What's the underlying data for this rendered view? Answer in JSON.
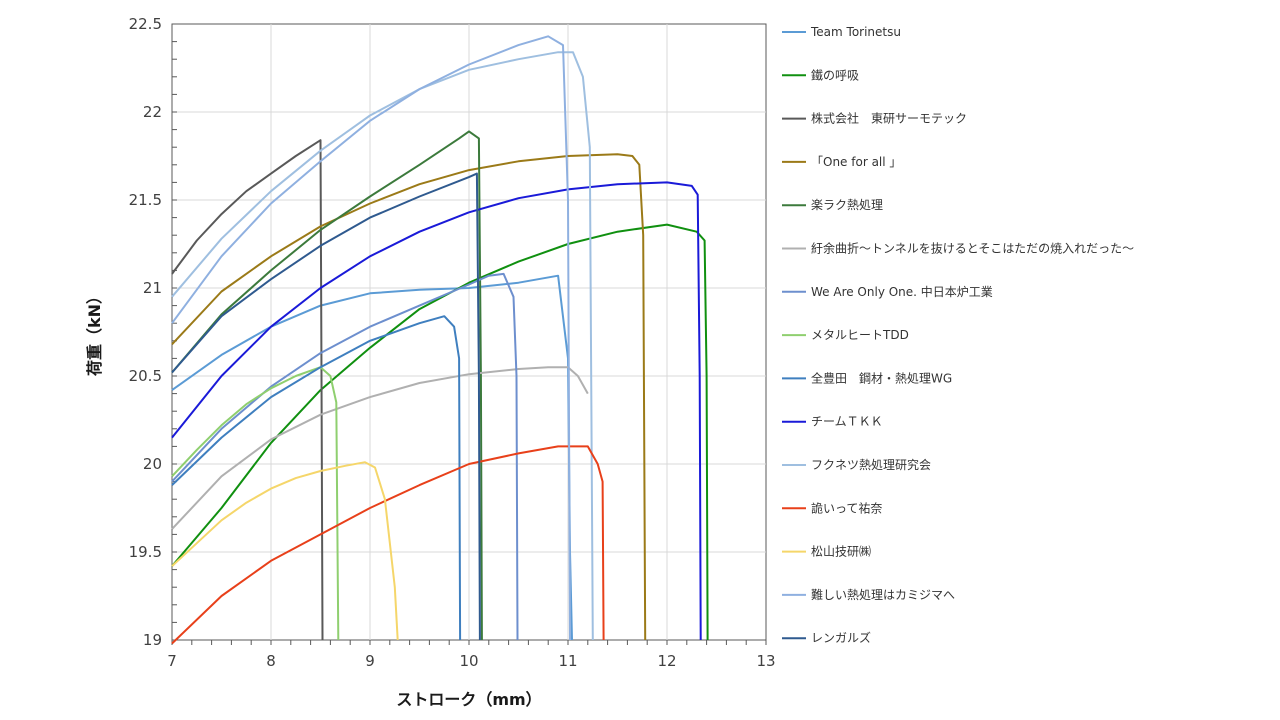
{
  "chart_data": {
    "type": "line",
    "xlabel": "ストローク（mm）",
    "ylabel": "荷重（kN）",
    "xlim": [
      7,
      13
    ],
    "ylim": [
      19,
      22.5
    ],
    "xticks": [
      7,
      8,
      9,
      10,
      11,
      12,
      13
    ],
    "yticks": [
      19,
      19.5,
      20,
      20.5,
      21,
      21.5,
      22,
      22.5
    ],
    "grid": true,
    "legend_position": "right",
    "series": [
      {
        "name": "Team Torinetsu",
        "color": "#5b9bd5",
        "x": [
          7.0,
          7.5,
          8.0,
          8.5,
          9.0,
          9.5,
          10.0,
          10.5,
          10.9,
          11.0,
          11.02,
          11.04
        ],
        "y": [
          20.42,
          20.62,
          20.78,
          20.9,
          20.97,
          20.99,
          21.0,
          21.03,
          21.07,
          20.6,
          19.5,
          19.0
        ]
      },
      {
        "name": "鐵の呼吸",
        "color": "#109010",
        "x": [
          7.0,
          7.5,
          8.0,
          8.5,
          9.0,
          9.5,
          10.0,
          10.5,
          11.0,
          11.5,
          12.0,
          12.3,
          12.38,
          12.4,
          12.41
        ],
        "y": [
          19.42,
          19.75,
          20.12,
          20.42,
          20.66,
          20.88,
          21.03,
          21.15,
          21.25,
          21.32,
          21.36,
          21.32,
          21.27,
          20.5,
          19.0
        ]
      },
      {
        "name": "株式会社　東研サーモテック",
        "color": "#595959",
        "x": [
          7.0,
          7.25,
          7.5,
          7.75,
          8.0,
          8.25,
          8.5,
          8.51,
          8.52
        ],
        "y": [
          21.08,
          21.27,
          21.42,
          21.55,
          21.65,
          21.75,
          21.84,
          20.5,
          19.0
        ]
      },
      {
        "name": "「One for all 」",
        "color": "#9b7a18",
        "x": [
          7.0,
          7.5,
          8.0,
          8.5,
          9.0,
          9.5,
          10.0,
          10.5,
          11.0,
          11.5,
          11.65,
          11.72,
          11.76,
          11.78
        ],
        "y": [
          20.68,
          20.98,
          21.18,
          21.35,
          21.48,
          21.59,
          21.67,
          21.72,
          21.75,
          21.76,
          21.75,
          21.7,
          21.3,
          19.0
        ]
      },
      {
        "name": "楽ラク熱処理",
        "color": "#3c7a3c",
        "x": [
          7.0,
          7.5,
          8.0,
          8.5,
          9.0,
          9.5,
          9.9,
          10.0,
          10.1,
          10.12,
          10.13
        ],
        "y": [
          20.52,
          20.85,
          21.1,
          21.33,
          21.52,
          21.7,
          21.85,
          21.89,
          21.85,
          20.5,
          19.0
        ]
      },
      {
        "name": "紆余曲折～トンネルを抜けるとそこはただの焼入れだった～",
        "color": "#b0b0b0",
        "x": [
          7.0,
          7.5,
          8.0,
          8.5,
          9.0,
          9.5,
          10.0,
          10.5,
          10.8,
          11.0,
          11.1,
          11.2
        ],
        "y": [
          19.63,
          19.93,
          20.14,
          20.28,
          20.38,
          20.46,
          20.51,
          20.54,
          20.55,
          20.55,
          20.5,
          20.4
        ]
      },
      {
        "name": "We Are Only One. 中日本炉工業",
        "color": "#6d8fce",
        "x": [
          7.0,
          7.5,
          8.0,
          8.5,
          9.0,
          9.5,
          10.0,
          10.2,
          10.35,
          10.45,
          10.48,
          10.49
        ],
        "y": [
          19.9,
          20.2,
          20.44,
          20.63,
          20.78,
          20.9,
          21.02,
          21.07,
          21.08,
          20.95,
          20.5,
          19.0
        ]
      },
      {
        "name": "メタルヒートTDD",
        "color": "#8fcf6f",
        "x": [
          7.0,
          7.25,
          7.5,
          7.75,
          8.0,
          8.25,
          8.5,
          8.6,
          8.66,
          8.68
        ],
        "y": [
          19.93,
          20.08,
          20.22,
          20.34,
          20.43,
          20.5,
          20.55,
          20.5,
          20.35,
          19.0
        ]
      },
      {
        "name": "全豊田　鋼材・熱処理WG",
        "color": "#3f7fbf",
        "x": [
          7.0,
          7.5,
          8.0,
          8.5,
          9.0,
          9.5,
          9.75,
          9.85,
          9.9,
          9.91
        ],
        "y": [
          19.88,
          20.15,
          20.38,
          20.55,
          20.7,
          20.8,
          20.84,
          20.78,
          20.6,
          19.0
        ]
      },
      {
        "name": "チームＴＫＫ",
        "color": "#1a1ad8",
        "x": [
          7.0,
          7.5,
          8.0,
          8.5,
          9.0,
          9.5,
          10.0,
          10.5,
          11.0,
          11.5,
          12.0,
          12.25,
          12.31,
          12.33,
          12.34
        ],
        "y": [
          20.15,
          20.5,
          20.78,
          21.0,
          21.18,
          21.32,
          21.43,
          21.51,
          21.56,
          21.59,
          21.6,
          21.58,
          21.53,
          20.5,
          19.0
        ]
      },
      {
        "name": "フクネツ熱処理研究会",
        "color": "#9fbfe0",
        "x": [
          7.0,
          7.5,
          8.0,
          8.5,
          9.0,
          9.5,
          10.0,
          10.5,
          10.9,
          11.05,
          11.15,
          11.22,
          11.25
        ],
        "y": [
          20.95,
          21.28,
          21.55,
          21.78,
          21.98,
          22.13,
          22.24,
          22.3,
          22.34,
          22.34,
          22.2,
          21.8,
          19.0
        ]
      },
      {
        "name": "詭いって祐奈",
        "color": "#e8401a",
        "x": [
          7.0,
          7.5,
          8.0,
          8.5,
          9.0,
          9.5,
          10.0,
          10.5,
          10.9,
          11.2,
          11.3,
          11.35,
          11.36
        ],
        "y": [
          18.98,
          19.25,
          19.45,
          19.6,
          19.75,
          19.88,
          20.0,
          20.06,
          20.1,
          20.1,
          20.0,
          19.9,
          19.0
        ]
      },
      {
        "name": "松山技研㈱",
        "color": "#f5d66a",
        "x": [
          7.0,
          7.25,
          7.5,
          7.75,
          8.0,
          8.25,
          8.5,
          8.75,
          8.95,
          9.05,
          9.15,
          9.25,
          9.28
        ],
        "y": [
          19.42,
          19.55,
          19.68,
          19.78,
          19.86,
          19.92,
          19.96,
          19.99,
          20.01,
          19.98,
          19.8,
          19.3,
          19.0
        ]
      },
      {
        "name": "難しい熱処理はカミジマへ",
        "color": "#8fb0e0",
        "x": [
          7.0,
          7.5,
          8.0,
          8.5,
          9.0,
          9.5,
          10.0,
          10.5,
          10.8,
          10.95,
          11.0,
          11.02
        ],
        "y": [
          20.8,
          21.18,
          21.48,
          21.72,
          21.95,
          22.13,
          22.27,
          22.38,
          22.43,
          22.38,
          21.5,
          19.0
        ]
      },
      {
        "name": "レンガルズ",
        "color": "#2f5a8f",
        "x": [
          7.0,
          7.5,
          8.0,
          8.5,
          9.0,
          9.5,
          10.0,
          10.08,
          10.1,
          10.11
        ],
        "y": [
          20.52,
          20.84,
          21.05,
          21.24,
          21.4,
          21.52,
          21.63,
          21.65,
          20.5,
          19.0
        ]
      }
    ]
  }
}
